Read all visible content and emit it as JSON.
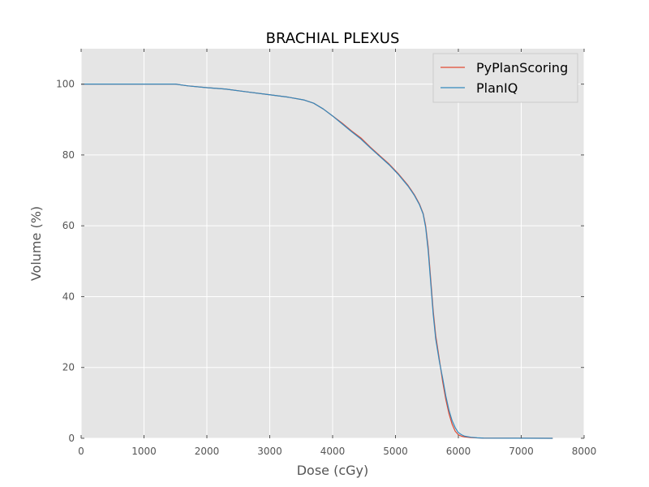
{
  "chart_data": {
    "type": "line",
    "title": "BRACHIAL PLEXUS",
    "xlabel": "Dose (cGy)",
    "ylabel": "Volume (%)",
    "xlim": [
      0,
      8000
    ],
    "ylim": [
      0,
      110
    ],
    "xticks": [
      0,
      1000,
      2000,
      3000,
      4000,
      5000,
      6000,
      7000,
      8000
    ],
    "yticks": [
      0,
      20,
      40,
      60,
      80,
      100
    ],
    "grid": true,
    "legend_position": "top-right",
    "background_color": "#e5e5e5",
    "grid_color": "#ffffff",
    "series": [
      {
        "name": "PyPlanScoring",
        "color": "#e24a33",
        "points": [
          [
            0,
            100
          ],
          [
            1500,
            100
          ],
          [
            1700,
            99.5
          ],
          [
            2000,
            99
          ],
          [
            2300,
            98.6
          ],
          [
            2600,
            97.9
          ],
          [
            3000,
            97
          ],
          [
            3300,
            96.3
          ],
          [
            3550,
            95.5
          ],
          [
            3700,
            94.6
          ],
          [
            3850,
            93
          ],
          [
            4000,
            91
          ],
          [
            4150,
            89
          ],
          [
            4300,
            86.8
          ],
          [
            4450,
            84.8
          ],
          [
            4600,
            82.2
          ],
          [
            4750,
            79.8
          ],
          [
            4900,
            77.4
          ],
          [
            5050,
            74.6
          ],
          [
            5200,
            71.4
          ],
          [
            5300,
            68.8
          ],
          [
            5380,
            66.2
          ],
          [
            5440,
            63.5
          ],
          [
            5480,
            60
          ],
          [
            5520,
            54
          ],
          [
            5560,
            45
          ],
          [
            5600,
            36
          ],
          [
            5640,
            29
          ],
          [
            5700,
            22
          ],
          [
            5750,
            16
          ],
          [
            5800,
            11
          ],
          [
            5850,
            7
          ],
          [
            5900,
            4
          ],
          [
            5950,
            2
          ],
          [
            6000,
            1
          ],
          [
            6050,
            0.6
          ],
          [
            6100,
            0.4
          ],
          [
            6200,
            0.2
          ],
          [
            6300,
            0.1
          ],
          [
            6400,
            0.05
          ],
          [
            7500,
            0
          ]
        ]
      },
      {
        "name": "PlanIQ",
        "color": "#348abd",
        "points": [
          [
            0,
            100
          ],
          [
            1500,
            100
          ],
          [
            1700,
            99.5
          ],
          [
            2000,
            99
          ],
          [
            2300,
            98.6
          ],
          [
            2600,
            97.9
          ],
          [
            3000,
            97
          ],
          [
            3300,
            96.3
          ],
          [
            3550,
            95.5
          ],
          [
            3700,
            94.6
          ],
          [
            3850,
            93
          ],
          [
            4000,
            91
          ],
          [
            4150,
            88.8
          ],
          [
            4300,
            86.6
          ],
          [
            4450,
            84.5
          ],
          [
            4600,
            82
          ],
          [
            4750,
            79.6
          ],
          [
            4900,
            77.2
          ],
          [
            5050,
            74.4
          ],
          [
            5200,
            71.2
          ],
          [
            5300,
            68.6
          ],
          [
            5380,
            66
          ],
          [
            5440,
            63.3
          ],
          [
            5480,
            59.5
          ],
          [
            5520,
            53
          ],
          [
            5560,
            44
          ],
          [
            5600,
            35
          ],
          [
            5640,
            28
          ],
          [
            5700,
            21.5
          ],
          [
            5750,
            17
          ],
          [
            5800,
            12
          ],
          [
            5850,
            8
          ],
          [
            5900,
            5
          ],
          [
            5950,
            3
          ],
          [
            6000,
            1.6
          ],
          [
            6050,
            1
          ],
          [
            6100,
            0.6
          ],
          [
            6200,
            0.3
          ],
          [
            6300,
            0.15
          ],
          [
            6400,
            0.05
          ],
          [
            7500,
            0
          ]
        ]
      }
    ]
  }
}
